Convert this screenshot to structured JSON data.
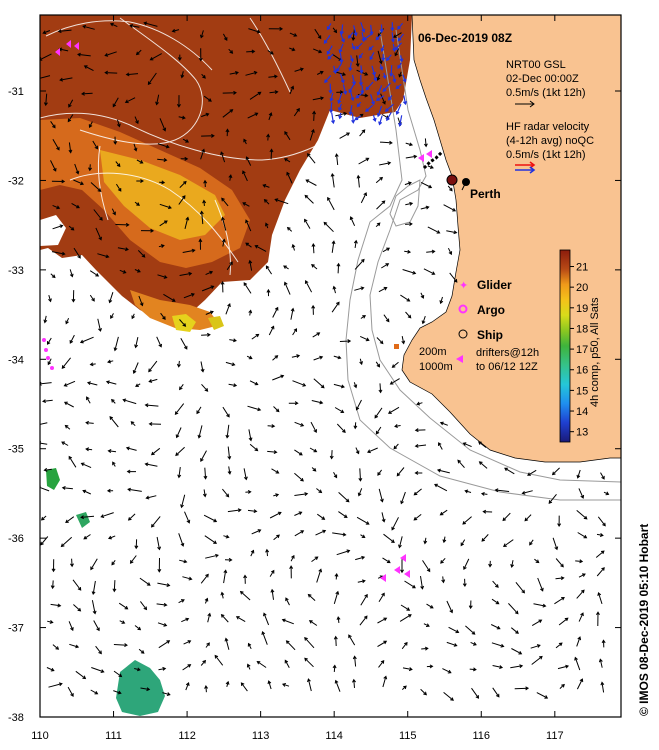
{
  "map": {
    "title": "06-Dec-2019 08Z",
    "x_ticks": [
      "110",
      "111",
      "112",
      "113",
      "114",
      "115",
      "116",
      "117"
    ],
    "y_ticks": [
      "-31",
      "-32",
      "-33",
      "-34",
      "-35",
      "-36",
      "-37",
      "-38"
    ],
    "lon_range": [
      110,
      117.9
    ],
    "lat_range": [
      -38,
      -30.15
    ],
    "city": {
      "name": "Perth",
      "lon": 115.86,
      "lat": -31.95
    },
    "gsl_legend": [
      "NRT00 GSL",
      "02-Dec 00:00Z",
      "0.5m/s (1kt 12h)"
    ],
    "hf_legend": [
      "HF radar velocity",
      "(4-12h avg) noQC",
      "0.5m/s (1kt 12h)"
    ],
    "platforms": {
      "glider": "Glider",
      "argo": "Argo",
      "ship": "Ship"
    },
    "drifters": "drifters@12h",
    "drifters_to": "to 06/12 12Z",
    "isobaths": [
      "200m",
      "1000m"
    ],
    "colorbar": {
      "label": "4h comp, p50, All Sats",
      "ticks": [
        "21",
        "20",
        "19",
        "18",
        "17",
        "16",
        "15",
        "14",
        "13"
      ],
      "range": [
        12.5,
        21.8
      ],
      "colors": [
        "#1a1a78",
        "#1f3fd0",
        "#1f8ff0",
        "#25c7d8",
        "#35c28a",
        "#3fb33c",
        "#8cc721",
        "#d8dc1a",
        "#f4c21a",
        "#f09a1a",
        "#dd751e",
        "#b84a16",
        "#8c1c0c"
      ]
    },
    "watermark": "© IMOS 08-Dec-2019 05:10 Hobart",
    "colors": {
      "land": "#f9c391",
      "frame": "#000000",
      "hf_arrow": "#2233dd",
      "platform": "#ff33ff"
    }
  }
}
